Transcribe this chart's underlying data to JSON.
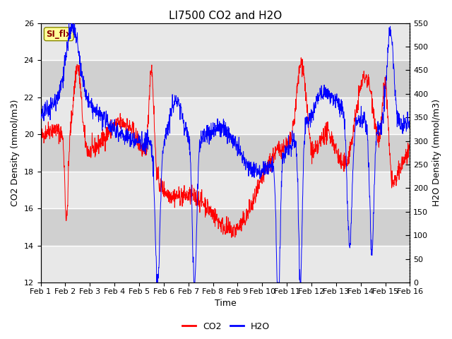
{
  "title": "LI7500 CO2 and H2O",
  "xlabel": "Time",
  "ylabel_left": "CO2 Density (mmol/m3)",
  "ylabel_right": "H2O Density (mmol/m3)",
  "ylim_left": [
    12,
    26
  ],
  "ylim_right": [
    0,
    550
  ],
  "yticks_left": [
    12,
    14,
    16,
    18,
    20,
    22,
    24,
    26
  ],
  "yticks_right": [
    0,
    50,
    100,
    150,
    200,
    250,
    300,
    350,
    400,
    450,
    500,
    550
  ],
  "xtick_labels": [
    "Feb 1",
    "Feb 2",
    "Feb 3",
    "Feb 4",
    "Feb 5",
    "Feb 6",
    "Feb 7",
    "Feb 8",
    "Feb 9",
    "Feb 10",
    "Feb 11",
    "Feb 12",
    "Feb 13",
    "Feb 14",
    "Feb 15",
    "Feb 16"
  ],
  "co2_color": "#ff0000",
  "h2o_color": "#0000ff",
  "legend_label_co2": "CO2",
  "legend_label_h2o": "H2O",
  "annotation_text": "SI_flx",
  "annotation_color": "#8b0000",
  "annotation_bg": "#ffff99",
  "band_colors": [
    "#e8e8e8",
    "#d0d0d0"
  ],
  "title_fontsize": 11,
  "axis_label_fontsize": 9,
  "tick_fontsize": 8,
  "legend_fontsize": 9
}
